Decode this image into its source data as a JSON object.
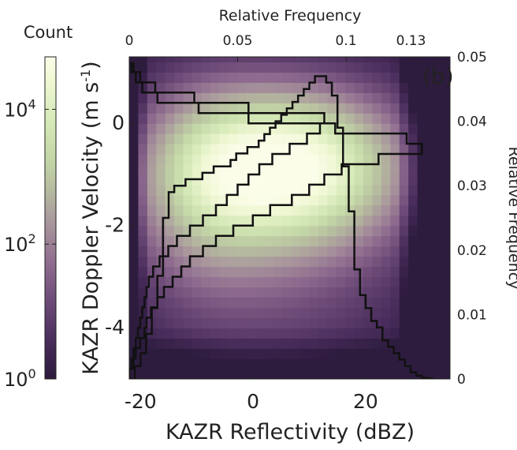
{
  "colorbar": {
    "title": "Count",
    "ticks": [
      {
        "value": 1,
        "base": "10",
        "exp": "0"
      },
      {
        "value": 100,
        "base": "10",
        "exp": "2"
      },
      {
        "value": 10000,
        "base": "10",
        "exp": "4"
      }
    ],
    "scale": "log",
    "range": [
      1,
      60000
    ],
    "colormap": [
      "#2b1a3c",
      "#4a2d5c",
      "#6c4a77",
      "#8f6c8f",
      "#a8949c",
      "#b5b99f",
      "#c3d6a6",
      "#d6e9b8",
      "#eef7d2",
      "#fbfde8"
    ]
  },
  "chart_data": {
    "type": "heatmap",
    "panel_label": "(b)",
    "xlabel": "KAZR Reflectivity (dBZ)",
    "ylabel": "KAZR Doppler Velocity (m s",
    "ylabel_sup": "-1",
    "ylabel_tail": ")",
    "xlim": [
      -22,
      35
    ],
    "ylim": [
      -5,
      1.3
    ],
    "x_ticks": [
      "-20",
      "0",
      "20"
    ],
    "x_tick_values": [
      -20,
      0,
      20
    ],
    "y_ticks": [
      "-4",
      "-2",
      "0"
    ],
    "y_tick_values": [
      -4,
      -2,
      0
    ],
    "top_axis": {
      "label": "Relative Frequency",
      "ticks": [
        "0",
        "0.05",
        "0.1",
        "0.13"
      ],
      "tick_values": [
        0,
        0.05,
        0.1,
        0.13
      ],
      "lim": [
        0,
        0.148
      ]
    },
    "right_axis": {
      "label": "Relative Frequency",
      "ticks": [
        "0",
        "0.01",
        "0.02",
        "0.03",
        "0.04",
        "0.05"
      ],
      "tick_values": [
        0,
        0.01,
        0.02,
        0.03,
        0.04,
        0.05
      ],
      "lim": [
        0,
        0.05
      ]
    },
    "reflectivity_histogram": {
      "x_edges": [
        -22,
        -21,
        -20,
        -19,
        -18,
        -17,
        -16,
        -15,
        -14,
        -13,
        -12,
        -11,
        -10,
        -9,
        -8,
        -7,
        -6,
        -5,
        -4,
        -3,
        -2,
        -1,
        0,
        1,
        2,
        3,
        4,
        5,
        6,
        7,
        8,
        9,
        10,
        11,
        12,
        13,
        14,
        15,
        16,
        17,
        18,
        19,
        20,
        21,
        22,
        23,
        24,
        25,
        26,
        27,
        28,
        29,
        30,
        31,
        32
      ],
      "freq": [
        0.0,
        0.002,
        0.004,
        0.007,
        0.011,
        0.016,
        0.025,
        0.029,
        0.03,
        0.03,
        0.031,
        0.031,
        0.031,
        0.032,
        0.032,
        0.033,
        0.033,
        0.033,
        0.034,
        0.035,
        0.035,
        0.036,
        0.036,
        0.037,
        0.038,
        0.039,
        0.04,
        0.041,
        0.042,
        0.043,
        0.044,
        0.045,
        0.046,
        0.047,
        0.047,
        0.046,
        0.044,
        0.039,
        0.033,
        0.026,
        0.017,
        0.013,
        0.011,
        0.009,
        0.008,
        0.006,
        0.005,
        0.004,
        0.003,
        0.002,
        0.001,
        0.0005,
        0.0002,
        0.0001
      ]
    },
    "velocity_histogram_all": {
      "y_edges": [
        -5,
        -4.8,
        -4.6,
        -4.4,
        -4.2,
        -4,
        -3.8,
        -3.6,
        -3.4,
        -3.2,
        -3,
        -2.8,
        -2.6,
        -2.4,
        -2.2,
        -2,
        -1.8,
        -1.6,
        -1.4,
        -1.2,
        -1,
        -0.8,
        -0.6,
        -0.4,
        -0.2,
        0,
        0.2,
        0.4,
        0.6,
        0.8,
        1,
        1.2
      ],
      "freq": [
        0.0,
        0.002,
        0.003,
        0.005,
        0.007,
        0.008,
        0.01,
        0.013,
        0.016,
        0.02,
        0.024,
        0.028,
        0.034,
        0.04,
        0.048,
        0.057,
        0.065,
        0.075,
        0.083,
        0.09,
        0.098,
        0.115,
        0.135,
        0.128,
        0.095,
        0.055,
        0.032,
        0.013,
        0.006,
        0.003,
        0.001
      ]
    },
    "velocity_histogram_subset": {
      "y_edges": [
        -5,
        -4.8,
        -4.6,
        -4.4,
        -4.2,
        -4,
        -3.8,
        -3.6,
        -3.4,
        -3.2,
        -3,
        -2.8,
        -2.6,
        -2.4,
        -2.2,
        -2,
        -1.8,
        -1.6,
        -1.4,
        -1.2,
        -1,
        -0.8,
        -0.6,
        -0.4,
        -0.2,
        0,
        0.2,
        0.4,
        0.6,
        0.8,
        1,
        1.2
      ],
      "freq": [
        0.0,
        0.001,
        0.002,
        0.003,
        0.004,
        0.005,
        0.006,
        0.007,
        0.008,
        0.009,
        0.011,
        0.014,
        0.018,
        0.022,
        0.028,
        0.034,
        0.04,
        0.045,
        0.05,
        0.055,
        0.06,
        0.066,
        0.074,
        0.082,
        0.088,
        0.09,
        0.055,
        0.03,
        0.012,
        0.005,
        0.002
      ]
    }
  }
}
